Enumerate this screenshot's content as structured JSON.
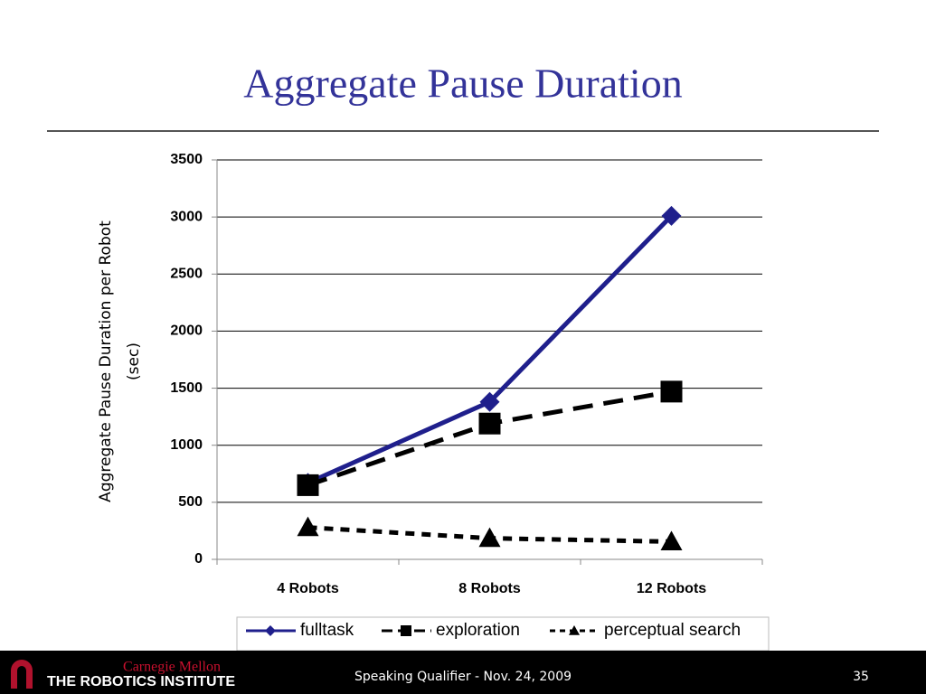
{
  "chart_data": {
    "type": "line",
    "title": "Aggregate Pause Duration",
    "ylabel": [
      "Aggregate Pause Duration per Robot",
      "(sec)"
    ],
    "categories": [
      "4 Robots",
      "8 Robots",
      "12 Robots"
    ],
    "series": [
      {
        "name": "fulltask",
        "color": "#1f1f8c",
        "marker": "diamond",
        "dash": "solid",
        "values": [
          670,
          1380,
          3010
        ]
      },
      {
        "name": "exploration",
        "color": "#000000",
        "marker": "square",
        "dash": "long",
        "values": [
          650,
          1190,
          1470
        ]
      },
      {
        "name": "perceptual search",
        "color": "#000000",
        "marker": "triangle",
        "dash": "short",
        "values": [
          280,
          185,
          155
        ]
      }
    ],
    "ylim": [
      0,
      3500
    ],
    "yticks": [
      0,
      500,
      1000,
      1500,
      2000,
      2500,
      3000,
      3500
    ],
    "grid": true,
    "legend": "bottom"
  },
  "footer": {
    "logo_top": "Carnegie Mellon",
    "logo_bottom": "THE ROBOTICS INSTITUTE",
    "text": "Speaking Qualifier - Nov. 24, 2009",
    "page": "35"
  }
}
